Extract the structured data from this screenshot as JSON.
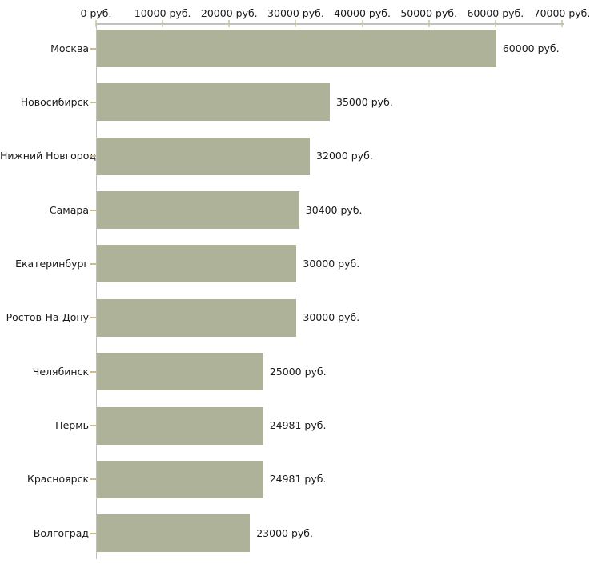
{
  "chart_data": {
    "type": "bar",
    "orientation": "horizontal",
    "title": "",
    "categories": [
      "Москва",
      "Новосибирск",
      "Нижний Новгород",
      "Самара",
      "Екатеринбург",
      "Ростов-На-Дону",
      "Челябинск",
      "Пермь",
      "Красноярск",
      "Волгоград"
    ],
    "values": [
      60000,
      35000,
      32000,
      30400,
      30000,
      30000,
      25000,
      24981,
      24981,
      23000
    ],
    "value_labels": [
      "60000 руб.",
      "35000 руб.",
      "32000 руб.",
      "30400 руб.",
      "30000 руб.",
      "30000 руб.",
      "25000 руб.",
      "24981 руб.",
      "24981 руб.",
      "23000 руб."
    ],
    "unit": "руб.",
    "x_axis": {
      "position": "top",
      "min": 0,
      "max": 70000,
      "tick_step": 10000,
      "tick_labels": [
        "0 руб.",
        "10000 руб.",
        "20000 руб.",
        "30000 руб.",
        "40000 руб.",
        "50000 руб.",
        "60000 руб.",
        "70000 руб."
      ]
    },
    "grid": false,
    "legend": false,
    "colors": {
      "bar": "#adb299",
      "axis_line": "#c1c1c1",
      "x_tick": "#d6d2aa",
      "y_tick": "#c9bc86",
      "text": "#1a1a1a",
      "background": "#ffffff"
    }
  }
}
